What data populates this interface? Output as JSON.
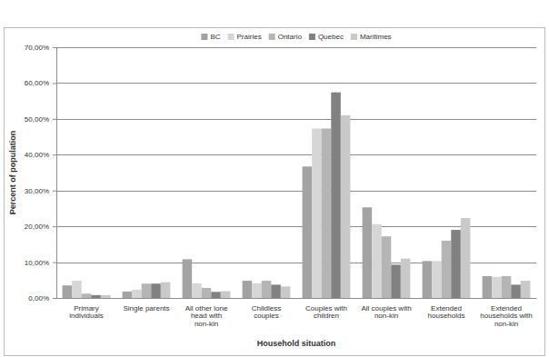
{
  "chart_data": {
    "type": "bar",
    "x_label": "Household situation",
    "y_label": "Percent of population",
    "categories": [
      "Primary individuals",
      "Single parents",
      "All other lone head with non-kin",
      "Childless couples",
      "Couples with children",
      "All couples with non-kin",
      "Extended households",
      "Extended households with non-kin"
    ],
    "series": [
      {
        "name": "BC",
        "color": "#a3a3a3",
        "values": [
          3.5,
          1.8,
          10.8,
          4.8,
          36.7,
          25.3,
          10.3,
          6.1
        ]
      },
      {
        "name": "Prairies",
        "color": "#d6d6d6",
        "values": [
          4.8,
          2.3,
          4.1,
          4.1,
          47.3,
          20.6,
          10.3,
          5.9
        ]
      },
      {
        "name": "Ontario",
        "color": "#b5b5b5",
        "values": [
          1.2,
          4.0,
          2.8,
          4.8,
          47.3,
          17.2,
          16.0,
          6.1
        ]
      },
      {
        "name": "Quebec",
        "color": "#818181",
        "values": [
          0.8,
          4.0,
          1.7,
          3.7,
          57.4,
          9.3,
          19.0,
          3.7
        ]
      },
      {
        "name": "Maritimes",
        "color": "#c9c9c9",
        "values": [
          0.8,
          4.4,
          1.9,
          3.2,
          51.0,
          11.0,
          22.3,
          4.8
        ]
      }
    ],
    "ylim": [
      0,
      70
    ],
    "yticks": [
      {
        "value": 0,
        "label": "0,00%"
      },
      {
        "value": 10,
        "label": "10,00%"
      },
      {
        "value": 20,
        "label": "20,00%"
      },
      {
        "value": 30,
        "label": "30,00%"
      },
      {
        "value": 40,
        "label": "40,00%"
      },
      {
        "value": 50,
        "label": "50,00%"
      },
      {
        "value": 60,
        "label": "60,00%"
      },
      {
        "value": 70,
        "label": "70,00%"
      }
    ],
    "grid": true,
    "legend": "top"
  }
}
